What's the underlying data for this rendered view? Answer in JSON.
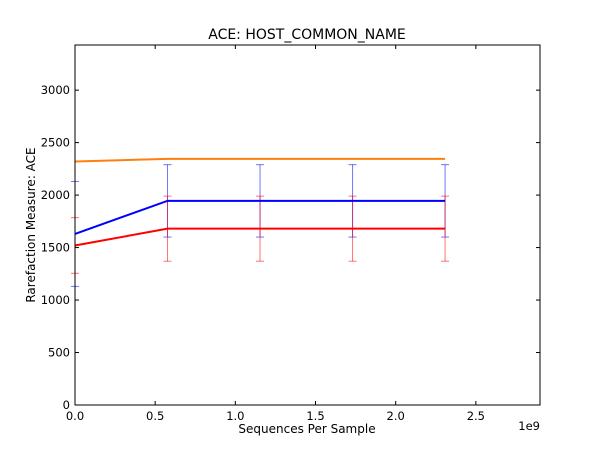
{
  "chart_data": {
    "type": "line",
    "title": "ACE: HOST_COMMON_NAME",
    "xlabel": "Sequences Per Sample",
    "ylabel": "Rarefaction Measure: ACE",
    "x_offset_label": "1e9",
    "xlim": [
      0.0,
      2.9
    ],
    "ylim": [
      0,
      3430
    ],
    "x_ticks": [
      0.0,
      0.5,
      1.0,
      1.5,
      2.0,
      2.5
    ],
    "x_tick_labels": [
      "0.0",
      "0.5",
      "1.0",
      "1.5",
      "2.0",
      "2.5"
    ],
    "y_ticks": [
      0,
      500,
      1000,
      1500,
      2000,
      2500,
      3000
    ],
    "y_tick_labels": [
      "0",
      "500",
      "1000",
      "1500",
      "2000",
      "2500",
      "3000"
    ],
    "grid": false,
    "legend": "none",
    "x": [
      0.0,
      0.577,
      1.154,
      1.731,
      2.308
    ],
    "series": [
      {
        "color": "#ff7f0e",
        "values": [
          2320,
          2345,
          2345,
          2345,
          2345
        ],
        "error": null
      },
      {
        "color": "#0000ff",
        "values": [
          1630,
          1945,
          1945,
          1945,
          1945
        ],
        "error": [
          500,
          345,
          345,
          345,
          345
        ]
      },
      {
        "color": "#ff0000",
        "values": [
          1520,
          1680,
          1680,
          1680,
          1680
        ],
        "error": [
          265,
          310,
          310,
          310,
          310
        ]
      }
    ]
  }
}
